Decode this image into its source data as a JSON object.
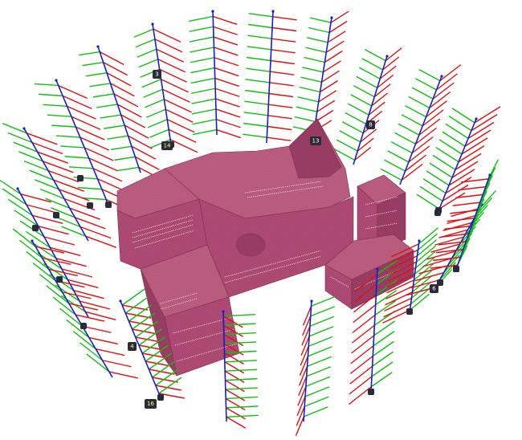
{
  "scene": {
    "background": "#ffffff",
    "building_color": "#a8456f",
    "building_edge": "#7d2d51",
    "axis_colors": {
      "x": "#e01010",
      "y": "#10c010",
      "z": "#1020d0"
    },
    "node_fill": "#2a2a3a"
  },
  "camera_labels": [
    "13",
    "8",
    "6",
    "14",
    "4",
    "16",
    "3"
  ]
}
